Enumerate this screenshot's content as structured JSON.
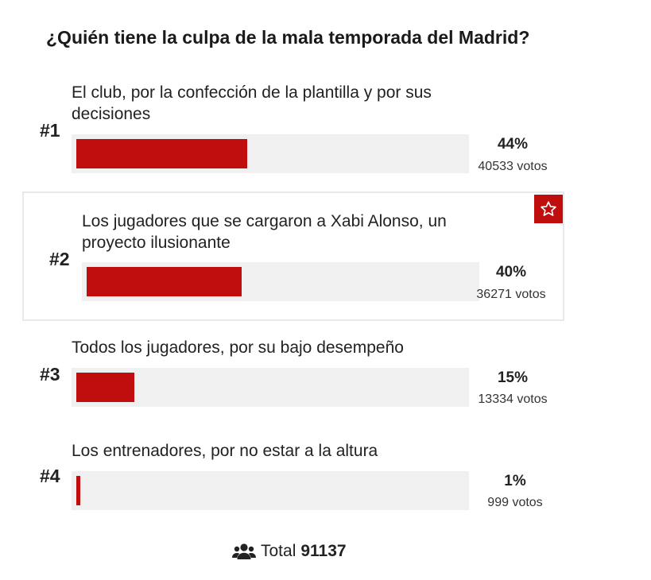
{
  "poll": {
    "title": "¿Quién tiene la culpa de la mala temporada del Madrid?",
    "options": [
      {
        "rank": "#1",
        "label": "El club, por la confección de la plantilla y por sus decisiones",
        "percent_label": "44%",
        "percent": 44,
        "votes": "40533 votos",
        "highlighted": false
      },
      {
        "rank": "#2",
        "label": "Los jugadores que se cargaron a Xabi Alonso, un proyecto ilusionante",
        "percent_label": "40%",
        "percent": 40,
        "votes": "36271 votos",
        "highlighted": true
      },
      {
        "rank": "#3",
        "label": "Todos los jugadores, por su bajo desempeño",
        "percent_label": "15%",
        "percent": 15,
        "votes": "13334 votos",
        "highlighted": false
      },
      {
        "rank": "#4",
        "label": "Los entrenadores, por no estar a la altura",
        "percent_label": "1%",
        "percent": 1,
        "votes": "999 votos",
        "highlighted": false
      }
    ],
    "total_label": "Total",
    "total_value": "91137"
  },
  "icons": {
    "highlight_badge": "star-icon",
    "total": "users-icon"
  },
  "colors": {
    "bar": "#c00d0d",
    "track": "#f0f0f0",
    "badge": "#c00d0d"
  }
}
